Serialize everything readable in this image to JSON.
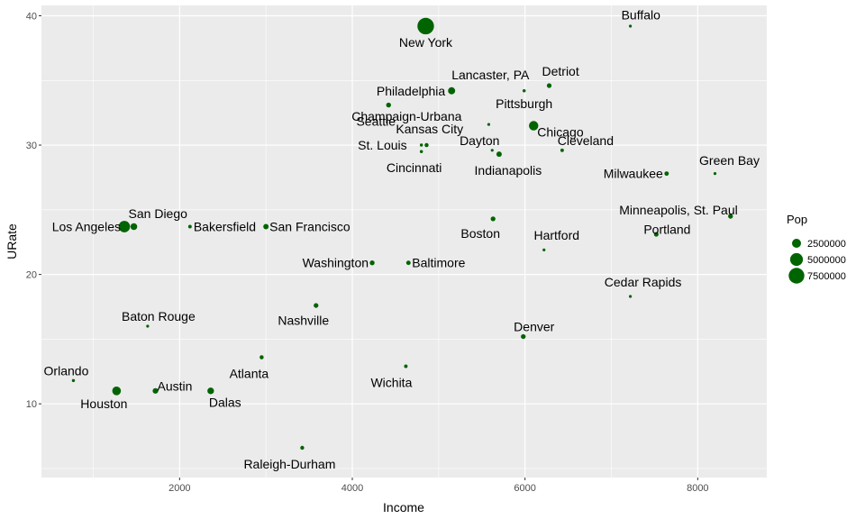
{
  "chart_data": {
    "type": "scatter",
    "xlabel": "Income",
    "ylabel": "URate",
    "xlim": [
      400,
      8800
    ],
    "ylim": [
      4.3,
      40.8
    ],
    "x_ticks": [
      2000,
      4000,
      6000,
      8000
    ],
    "x_minor": [
      1000,
      3000,
      5000,
      7000
    ],
    "y_ticks": [
      10,
      20,
      30,
      40
    ],
    "y_minor": [
      5,
      15,
      25,
      35
    ],
    "x_tick_labels": [
      "2000",
      "4000",
      "6000",
      "8000"
    ],
    "y_tick_labels": [
      "10",
      "20",
      "30",
      "40"
    ],
    "grid": true,
    "point_color": "#006400",
    "panel_color": "#ebebeb",
    "legend": {
      "title": "Pop",
      "position": "right",
      "entries": [
        {
          "label": "2500000",
          "value": 2500000
        },
        {
          "label": "5000000",
          "value": 5000000
        },
        {
          "label": "7500000",
          "value": 7500000
        }
      ]
    },
    "points": [
      {
        "name": "New York",
        "income": 4850,
        "urate": 39.2,
        "pop": 8400000,
        "anchor": "middle",
        "dy": 1.0
      },
      {
        "name": "Buffalo",
        "income": 7220,
        "urate": 39.2,
        "pop": 260000,
        "anchor": "start",
        "dx": -10,
        "dy": -0.7
      },
      {
        "name": "Lancaster, PA",
        "income": 5150,
        "urate": 34.2,
        "pop": 60000,
        "anchor": "start",
        "dx": 0,
        "dy": -1.0
      },
      {
        "name": "Detriot",
        "income": 6280,
        "urate": 34.6,
        "pop": 680000,
        "anchor": "start",
        "dx": -8,
        "dy": -0.9
      },
      {
        "name": "Philadelphia",
        "income": 5150,
        "urate": 34.2,
        "pop": 1550000,
        "anchor": "end",
        "dx": -7,
        "dy": 0.0
      },
      {
        "name": "Pittsburgh",
        "income": 5990,
        "urate": 34.2,
        "pop": 300000,
        "anchor": "middle",
        "dx": 0,
        "dy": 0.8
      },
      {
        "name": "Seattle",
        "income": 4420,
        "urate": 33.1,
        "pop": 730000,
        "anchor": "middle",
        "dx": -14,
        "dy": 1.0
      },
      {
        "name": "Champaign-Urbana",
        "income": 5580,
        "urate": 31.6,
        "pop": 90000,
        "anchor": "end",
        "dx": -30,
        "dy": -0.5
      },
      {
        "name": "Chicago",
        "income": 6100,
        "urate": 31.5,
        "pop": 2700000,
        "anchor": "start",
        "dx": 4,
        "dy": 0.4
      },
      {
        "name": "Kansas City",
        "income": 4860,
        "urate": 30.0,
        "pop": 500000,
        "anchor": "start",
        "dx": -34,
        "dy": -1.0
      },
      {
        "name": "St. Louis",
        "income": 4800,
        "urate": 30.0,
        "pop": 300000,
        "anchor": "end",
        "dx": -16,
        "dy": 0.0
      },
      {
        "name": "Cincinnati",
        "income": 4800,
        "urate": 29.5,
        "pop": 300000,
        "anchor": "middle",
        "dx": -8,
        "dy": 1.0
      },
      {
        "name": "Dayton",
        "income": 5620,
        "urate": 29.6,
        "pop": 140000,
        "anchor": "middle",
        "dx": -14,
        "dy": -0.6
      },
      {
        "name": "Indianapolis",
        "income": 5700,
        "urate": 29.3,
        "pop": 870000,
        "anchor": "middle",
        "dx": 10,
        "dy": 1.0
      },
      {
        "name": "Cleveland",
        "income": 6430,
        "urate": 29.6,
        "pop": 380000,
        "anchor": "middle",
        "dx": 26,
        "dy": -0.6
      },
      {
        "name": "Green Bay",
        "income": 8200,
        "urate": 27.8,
        "pop": 105000,
        "anchor": "middle",
        "dx": 16,
        "dy": -0.8
      },
      {
        "name": "Milwaukee",
        "income": 7640,
        "urate": 27.8,
        "pop": 590000,
        "anchor": "end",
        "dx": -4,
        "dy": 0.0
      },
      {
        "name": "Minneapolis, St. Paul",
        "income": 8380,
        "urate": 24.5,
        "pop": 720000,
        "anchor": "end",
        "dx": 8,
        "dy": -0.4
      },
      {
        "name": "Portland",
        "income": 7520,
        "urate": 23.1,
        "pop": 650000,
        "anchor": "start",
        "dx": -14,
        "dy": -0.3
      },
      {
        "name": "Los Angeles",
        "income": 1360,
        "urate": 23.7,
        "pop": 3980000,
        "anchor": "end",
        "dx": -4,
        "dy": 0.0
      },
      {
        "name": "San Diego",
        "income": 1470,
        "urate": 23.7,
        "pop": 1420000,
        "anchor": "start",
        "dx": -6,
        "dy": -0.8
      },
      {
        "name": "Bakersfield",
        "income": 2120,
        "urate": 23.7,
        "pop": 380000,
        "anchor": "start",
        "dx": 4,
        "dy": 0.0
      },
      {
        "name": "San Francisco",
        "income": 3000,
        "urate": 23.7,
        "pop": 880000,
        "anchor": "start",
        "dx": 4,
        "dy": 0.0
      },
      {
        "name": "Boston",
        "income": 5630,
        "urate": 24.3,
        "pop": 690000,
        "anchor": "middle",
        "dx": -14,
        "dy": 0.9
      },
      {
        "name": "Hartford",
        "income": 6220,
        "urate": 21.9,
        "pop": 120000,
        "anchor": "middle",
        "dx": 14,
        "dy": -0.9
      },
      {
        "name": "Washington",
        "income": 4230,
        "urate": 20.9,
        "pop": 700000,
        "anchor": "end",
        "dx": -4,
        "dy": 0.0
      },
      {
        "name": "Baltimore",
        "income": 4650,
        "urate": 20.9,
        "pop": 600000,
        "anchor": "start",
        "dx": 4,
        "dy": 0.0
      },
      {
        "name": "Cedar Rapids",
        "income": 7220,
        "urate": 18.3,
        "pop": 130000,
        "anchor": "middle",
        "dx": 14,
        "dy": -0.9
      },
      {
        "name": "Nashville",
        "income": 3580,
        "urate": 17.6,
        "pop": 690000,
        "anchor": "middle",
        "dx": -14,
        "dy": 0.9
      },
      {
        "name": "Baton Rouge",
        "income": 1630,
        "urate": 16.0,
        "pop": 220000,
        "anchor": "middle",
        "dx": 12,
        "dy": -0.6
      },
      {
        "name": "Denver",
        "income": 5980,
        "urate": 15.2,
        "pop": 710000,
        "anchor": "middle",
        "dx": 12,
        "dy": -0.6
      },
      {
        "name": "Atlanta",
        "income": 2950,
        "urate": 13.6,
        "pop": 500000,
        "anchor": "middle",
        "dx": -14,
        "dy": 1.0
      },
      {
        "name": "Wichita",
        "income": 4620,
        "urate": 12.9,
        "pop": 390000,
        "anchor": "middle",
        "dx": -16,
        "dy": 1.0
      },
      {
        "name": "Orlando",
        "income": 770,
        "urate": 11.8,
        "pop": 290000,
        "anchor": "middle",
        "dx": -8,
        "dy": -0.6
      },
      {
        "name": "Houston",
        "income": 1270,
        "urate": 11.0,
        "pop": 2300000,
        "anchor": "middle",
        "dx": -14,
        "dy": 0.8
      },
      {
        "name": "Austin",
        "income": 1720,
        "urate": 11.0,
        "pop": 960000,
        "anchor": "start",
        "dx": 2,
        "dy": -0.3
      },
      {
        "name": "Dalas",
        "income": 2360,
        "urate": 11.0,
        "pop": 1340000,
        "anchor": "start",
        "dx": -2,
        "dy": 0.7
      },
      {
        "name": "Raleigh-Durham",
        "income": 3420,
        "urate": 6.6,
        "pop": 470000,
        "anchor": "middle",
        "dx": -14,
        "dy": 1.0
      }
    ]
  }
}
